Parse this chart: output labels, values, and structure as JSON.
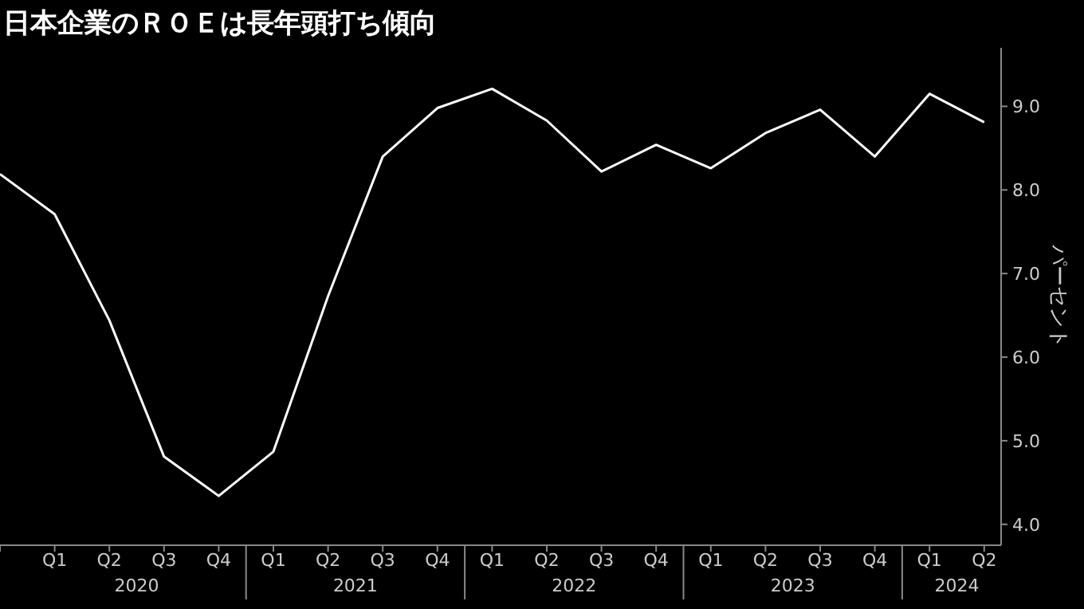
{
  "chart_data": {
    "type": "line",
    "title": "日本企業のＲＯＥは長年頭打ち傾向",
    "ylabel": "パーセント",
    "categories": [
      null,
      "Q1",
      "Q2",
      "Q3",
      "Q4",
      "Q1",
      "Q2",
      "Q3",
      "Q4",
      "Q1",
      "Q2",
      "Q3",
      "Q4",
      "Q1",
      "Q2",
      "Q3",
      "Q4",
      "Q1",
      "Q2"
    ],
    "annotations": [
      "2020",
      "2021",
      "2022",
      "2023",
      "2024"
    ],
    "series": [
      {
        "color": "#ffffff",
        "values": [
          8.19,
          7.71,
          6.44,
          4.81,
          4.34,
          4.87,
          6.73,
          8.4,
          8.98,
          9.21,
          8.83,
          8.22,
          8.54,
          8.26,
          8.68,
          8.96,
          8.4,
          9.15,
          8.81
        ]
      }
    ],
    "ylim": [
      3.75,
      9.7
    ],
    "yticks": [
      {
        "value": 4,
        "label": "4.0"
      },
      {
        "value": 5,
        "label": "5.0"
      },
      {
        "value": 6,
        "label": "6.0"
      },
      {
        "value": 7,
        "label": "7.0"
      },
      {
        "value": 8,
        "label": "8.0"
      },
      {
        "value": 9,
        "label": "9.0"
      }
    ],
    "grid": false,
    "marker": "none",
    "line_style": "solid"
  }
}
